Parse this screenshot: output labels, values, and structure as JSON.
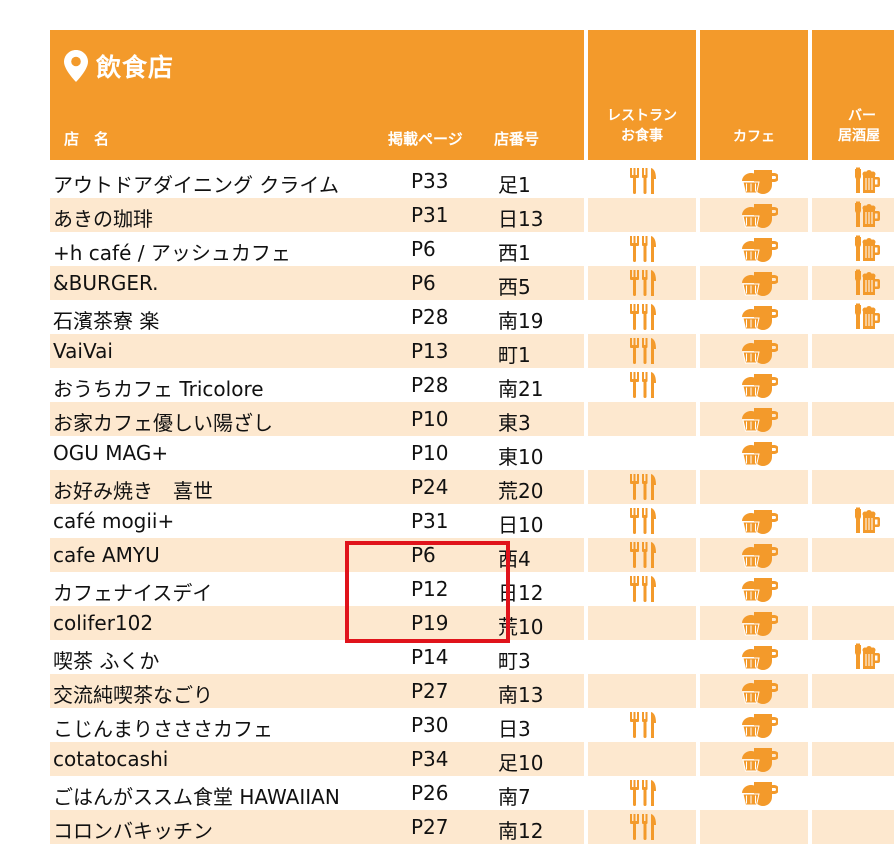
{
  "header": {
    "title": "飲食店",
    "col_name": "店　名",
    "col_page": "掲載ページ",
    "col_shop_no": "店番号",
    "cat_restaurant_line1": "レストラン",
    "cat_restaurant_line2": "お食事",
    "cat_cafe": "カフェ",
    "cat_bar_line1": "バー",
    "cat_bar_line2": "居酒屋"
  },
  "icons": {
    "title": "map-pin-icon",
    "restaurant": "fork-knife-icon",
    "cafe": "coffee-cupcake-icon",
    "bar": "beer-mug-icon"
  },
  "colors": {
    "accent": "#f39a2b",
    "row_alt": "#fde8cf",
    "highlight": "#e0131b"
  },
  "rows": [
    {
      "name": "アウトドアダイニング クライム",
      "page": "P33",
      "shop_no": "足1",
      "restaurant": true,
      "cafe": true,
      "bar": true
    },
    {
      "name": "あきの珈琲",
      "page": "P31",
      "shop_no": "日13",
      "restaurant": false,
      "cafe": true,
      "bar": true
    },
    {
      "name": "+h café / アッシュカフェ",
      "page": "P6",
      "shop_no": "西1",
      "restaurant": true,
      "cafe": true,
      "bar": true
    },
    {
      "name": "&BURGER.",
      "page": "P6",
      "shop_no": "西5",
      "restaurant": true,
      "cafe": true,
      "bar": true
    },
    {
      "name": "石濱茶寮 楽",
      "page": "P28",
      "shop_no": "南19",
      "restaurant": true,
      "cafe": true,
      "bar": true
    },
    {
      "name": "VaiVai",
      "page": "P13",
      "shop_no": "町1",
      "restaurant": true,
      "cafe": true,
      "bar": false
    },
    {
      "name": "おうちカフェ Tricolore",
      "page": "P28",
      "shop_no": "南21",
      "restaurant": true,
      "cafe": true,
      "bar": false
    },
    {
      "name": "お家カフェ優しい陽ざし",
      "page": "P10",
      "shop_no": "東3",
      "restaurant": false,
      "cafe": true,
      "bar": false
    },
    {
      "name": "OGU MAG+",
      "page": "P10",
      "shop_no": "東10",
      "restaurant": false,
      "cafe": true,
      "bar": false
    },
    {
      "name": "お好み焼き　喜世",
      "page": "P24",
      "shop_no": "荒20",
      "restaurant": true,
      "cafe": false,
      "bar": false
    },
    {
      "name": "café mogii+",
      "page": "P31",
      "shop_no": "日10",
      "restaurant": true,
      "cafe": true,
      "bar": true
    },
    {
      "name": "cafe AMYU",
      "page": "P6",
      "shop_no": "西4",
      "restaurant": true,
      "cafe": true,
      "bar": false
    },
    {
      "name": "カフェナイスデイ",
      "page": "P12",
      "shop_no": "日12",
      "restaurant": true,
      "cafe": true,
      "bar": false
    },
    {
      "name": "colifer102",
      "page": "P19",
      "shop_no": "荒10",
      "restaurant": false,
      "cafe": true,
      "bar": false
    },
    {
      "name": "喫茶 ふくか",
      "page": "P14",
      "shop_no": "町3",
      "restaurant": false,
      "cafe": true,
      "bar": true
    },
    {
      "name": "交流純喫茶なごり",
      "page": "P27",
      "shop_no": "南13",
      "restaurant": false,
      "cafe": true,
      "bar": false
    },
    {
      "name": "こじんまりさささカフェ",
      "page": "P30",
      "shop_no": "日3",
      "restaurant": true,
      "cafe": true,
      "bar": false
    },
    {
      "name": "cotatocashi",
      "page": "P34",
      "shop_no": "足10",
      "restaurant": false,
      "cafe": true,
      "bar": false
    },
    {
      "name": "ごはんがススム食堂 HAWAIIAN",
      "page": "P26",
      "shop_no": "南7",
      "restaurant": true,
      "cafe": true,
      "bar": false
    },
    {
      "name": "コロンバキッチン",
      "page": "P27",
      "shop_no": "南12",
      "restaurant": true,
      "cafe": false,
      "bar": false
    }
  ]
}
